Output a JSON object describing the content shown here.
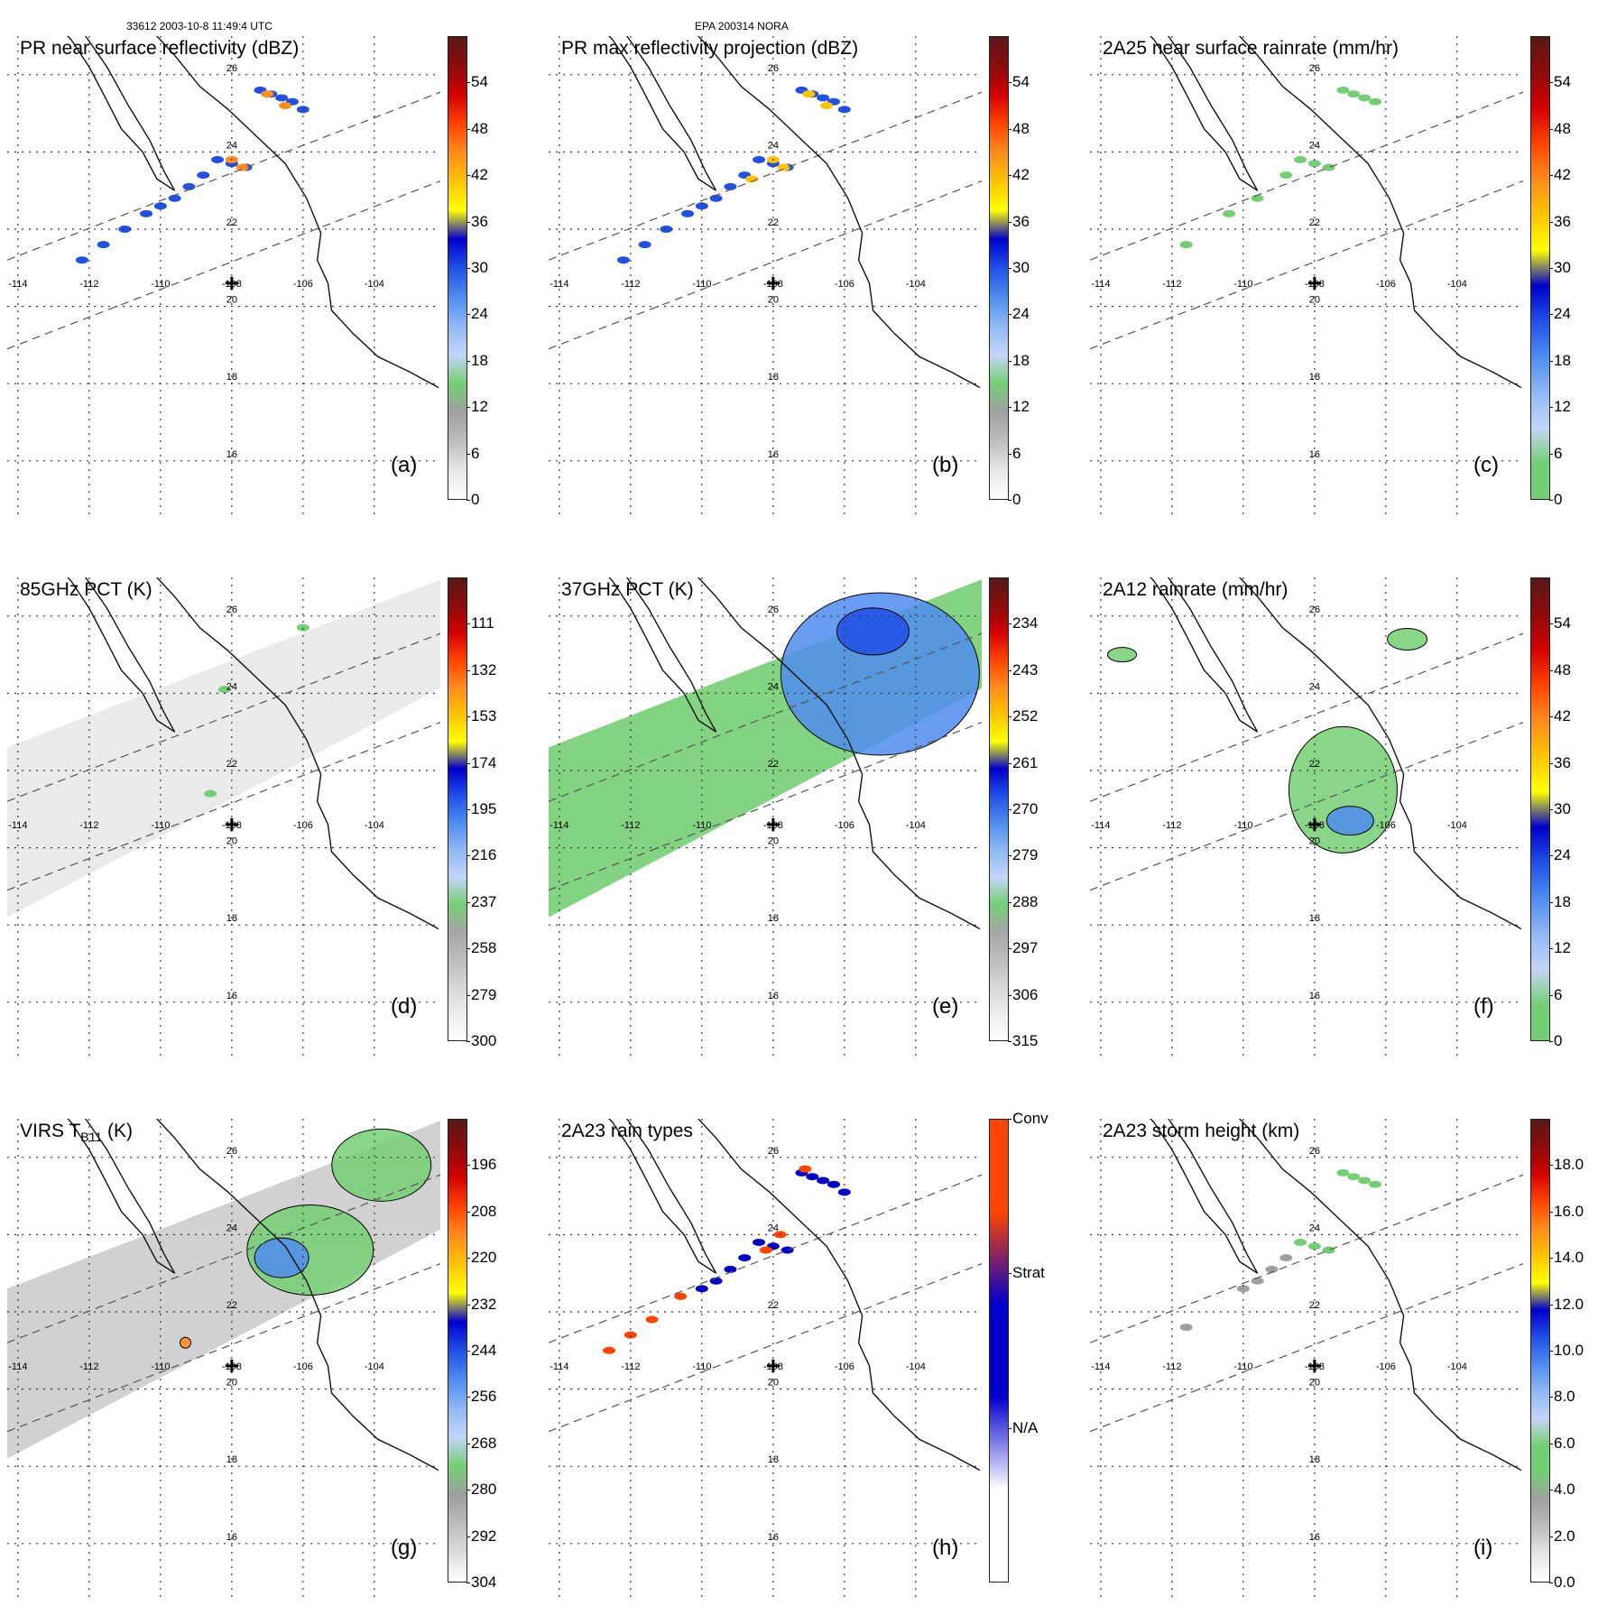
{
  "header": {
    "orbit_time": "33612 2003-10-8 11:49:4 UTC",
    "storm": "EPA 200314 NORA"
  },
  "map": {
    "lon_labels": [
      "-114",
      "-112",
      "-110",
      "-108",
      "-106",
      "-104"
    ],
    "lat_labels": [
      "26",
      "24",
      "22",
      "20",
      "18",
      "16"
    ]
  },
  "colors": {
    "coast": "#111111",
    "grid": "#333333",
    "swath": "#555555"
  },
  "panels": [
    {
      "id": "a",
      "title": "PR near surface reflectivity (dBZ)",
      "title_sub": "",
      "title_post": "",
      "label": "(a)",
      "colorbar": [
        "#ffffff",
        "#e6e6e6",
        "#bebebe",
        "#a0a0a0",
        "#74cf74",
        "#c4d4f8",
        "#90b8f4",
        "#4f8cee",
        "#2050e6",
        "#0000cc",
        "#ffff00",
        "#ffc400",
        "#ff8c1c",
        "#ff4400",
        "#d40000",
        "#8a0c0c",
        "#5a1818"
      ],
      "ticks": [
        "0",
        "6",
        "12",
        "18",
        "24",
        "30",
        "36",
        "42",
        "48",
        "54"
      ],
      "tick_pos": [
        0,
        0.1,
        0.2,
        0.3,
        0.4,
        0.5,
        0.6,
        0.7,
        0.8,
        0.9
      ],
      "features": [
        {
          "type": "cells",
          "color": "#2050e6",
          "lon": [
            -107.2,
            -106.9,
            -106.6,
            -106.3,
            -106.0,
            -108.4,
            -108.0,
            -107.6,
            -108.8,
            -109.2,
            -109.6,
            -110.0,
            -110.4,
            -111.0,
            -111.6,
            -112.2
          ],
          "lat": [
            25.6,
            25.5,
            25.4,
            25.3,
            25.1,
            23.8,
            23.7,
            23.6,
            23.4,
            23.1,
            22.8,
            22.6,
            22.4,
            22.0,
            21.6,
            21.2
          ]
        },
        {
          "type": "cells",
          "color": "#ff8c1c",
          "lon": [
            -107.0,
            -106.5,
            -108.0,
            -107.7
          ],
          "lat": [
            25.5,
            25.2,
            23.8,
            23.6
          ]
        }
      ]
    },
    {
      "id": "b",
      "title": "PR max reflectivity projection (dBZ)",
      "title_sub": "",
      "title_post": "",
      "label": "(b)",
      "colorbar": [
        "#ffffff",
        "#e6e6e6",
        "#bebebe",
        "#a0a0a0",
        "#74cf74",
        "#c4d4f8",
        "#90b8f4",
        "#4f8cee",
        "#2050e6",
        "#0000cc",
        "#ffff00",
        "#ffc400",
        "#ff8c1c",
        "#ff4400",
        "#d40000",
        "#8a0c0c",
        "#5a1818"
      ],
      "ticks": [
        "0",
        "6",
        "12",
        "18",
        "24",
        "30",
        "36",
        "42",
        "48",
        "54"
      ],
      "tick_pos": [
        0,
        0.1,
        0.2,
        0.3,
        0.4,
        0.5,
        0.6,
        0.7,
        0.8,
        0.9
      ],
      "features": [
        {
          "type": "cells",
          "color": "#2050e6",
          "lon": [
            -107.2,
            -106.9,
            -106.6,
            -106.3,
            -106.0,
            -108.4,
            -108.0,
            -107.6,
            -108.8,
            -109.2,
            -109.6,
            -110.0,
            -110.4,
            -111.0,
            -111.6,
            -112.2
          ],
          "lat": [
            25.6,
            25.5,
            25.4,
            25.3,
            25.1,
            23.8,
            23.7,
            23.6,
            23.4,
            23.1,
            22.8,
            22.6,
            22.4,
            22.0,
            21.6,
            21.2
          ]
        },
        {
          "type": "cells",
          "color": "#ffc400",
          "lon": [
            -107.0,
            -106.5,
            -108.0,
            -107.7,
            -108.6
          ],
          "lat": [
            25.5,
            25.2,
            23.8,
            23.6,
            23.3
          ]
        }
      ]
    },
    {
      "id": "c",
      "title": "2A25 near surface rainrate (mm/hr)",
      "title_sub": "",
      "title_post": "",
      "label": "(c)",
      "colorbar": [
        "#74cf74",
        "#74cf74",
        "#c4d4f8",
        "#90b8f4",
        "#4f8cee",
        "#2050e6",
        "#0000cc",
        "#ffff00",
        "#ffc400",
        "#ff8c1c",
        "#ff4400",
        "#d40000",
        "#8a0c0c",
        "#5a1818"
      ],
      "ticks": [
        "0",
        "6",
        "12",
        "18",
        "24",
        "30",
        "36",
        "42",
        "48",
        "54"
      ],
      "tick_pos": [
        0,
        0.1,
        0.2,
        0.3,
        0.4,
        0.5,
        0.6,
        0.7,
        0.8,
        0.9
      ],
      "features": [
        {
          "type": "cells",
          "color": "#74cf74",
          "lon": [
            -107.2,
            -106.9,
            -106.6,
            -106.3,
            -108.4,
            -108.0,
            -107.6,
            -108.8,
            -109.6,
            -110.4,
            -111.6
          ],
          "lat": [
            25.6,
            25.5,
            25.4,
            25.3,
            23.8,
            23.7,
            23.6,
            23.4,
            22.8,
            22.4,
            21.6
          ]
        }
      ]
    },
    {
      "id": "d",
      "title": "85GHz PCT (K)",
      "title_sub": "",
      "title_post": "",
      "label": "(d)",
      "colorbar": [
        "#ffffff",
        "#ececec",
        "#d6d6d6",
        "#bcbcbc",
        "#a6a6a6",
        "#74cf74",
        "#c4d4f8",
        "#90b8f4",
        "#4f8cee",
        "#2050e6",
        "#0000cc",
        "#ffff00",
        "#ffc400",
        "#ff8c1c",
        "#ff4400",
        "#d40000",
        "#8a0c0c",
        "#5a1818"
      ],
      "ticks": [
        "300",
        "279",
        "258",
        "237",
        "216",
        "195",
        "174",
        "153",
        "132",
        "111"
      ],
      "tick_pos": [
        0,
        0.1,
        0.2,
        0.3,
        0.4,
        0.5,
        0.6,
        0.7,
        0.8,
        0.9
      ],
      "features": [
        {
          "type": "field",
          "color": "#e9e9e9",
          "opacity": 0.95
        },
        {
          "type": "cells",
          "color": "#74cf74",
          "lon": [
            -106.0,
            -108.2,
            -108.6
          ],
          "lat": [
            25.7,
            24.1,
            21.4
          ]
        }
      ]
    },
    {
      "id": "e",
      "title": "37GHz PCT (K)",
      "title_sub": "",
      "title_post": "",
      "label": "(e)",
      "colorbar": [
        "#ffffff",
        "#ececec",
        "#d6d6d6",
        "#bcbcbc",
        "#a6a6a6",
        "#74cf74",
        "#c4d4f8",
        "#90b8f4",
        "#4f8cee",
        "#2050e6",
        "#0000cc",
        "#ffff00",
        "#ffc400",
        "#ff8c1c",
        "#ff4400",
        "#d40000",
        "#8a0c0c",
        "#5a1818"
      ],
      "ticks": [
        "315",
        "306",
        "297",
        "288",
        "279",
        "270",
        "261",
        "252",
        "243",
        "234"
      ],
      "tick_pos": [
        0,
        0.1,
        0.2,
        0.3,
        0.4,
        0.5,
        0.6,
        0.7,
        0.8,
        0.9
      ],
      "features": [
        {
          "type": "field",
          "color": "#74cf74",
          "opacity": 0.9
        },
        {
          "type": "blob",
          "color": "#4f8cee",
          "lon": -105.0,
          "lat": 24.5,
          "rx": 110,
          "ry": 90
        },
        {
          "type": "blob",
          "color": "#2050e6",
          "lon": -105.2,
          "lat": 25.6,
          "rx": 40,
          "ry": 26
        }
      ]
    },
    {
      "id": "f",
      "title": "2A12 rainrate (mm/hr)",
      "title_sub": "",
      "title_post": "",
      "label": "(f)",
      "colorbar": [
        "#74cf74",
        "#74cf74",
        "#c4d4f8",
        "#90b8f4",
        "#4f8cee",
        "#2050e6",
        "#0000cc",
        "#ffff00",
        "#ffc400",
        "#ff8c1c",
        "#ff4400",
        "#d40000",
        "#8a0c0c",
        "#5a1818"
      ],
      "ticks": [
        "0",
        "6",
        "12",
        "18",
        "24",
        "30",
        "36",
        "42",
        "48",
        "54"
      ],
      "tick_pos": [
        0,
        0.1,
        0.2,
        0.3,
        0.4,
        0.5,
        0.6,
        0.7,
        0.8,
        0.9
      ],
      "features": [
        {
          "type": "blob",
          "color": "#74cf74",
          "lon": -107.2,
          "lat": 21.5,
          "rx": 60,
          "ry": 70
        },
        {
          "type": "blob",
          "color": "#74cf74",
          "lon": -105.4,
          "lat": 25.4,
          "rx": 22,
          "ry": 12
        },
        {
          "type": "blob",
          "color": "#74cf74",
          "lon": -113.4,
          "lat": 25.0,
          "rx": 16,
          "ry": 8
        },
        {
          "type": "blob",
          "color": "#4f8cee",
          "lon": -107.0,
          "lat": 20.7,
          "rx": 26,
          "ry": 16
        }
      ]
    },
    {
      "id": "g",
      "title": "VIRS T",
      "title_sub": "B11",
      "title_post": " (K)",
      "label": "(g)",
      "colorbar": [
        "#ffffff",
        "#dcdcdc",
        "#bcbcbc",
        "#9e9e9e",
        "#74cf74",
        "#c4d4f8",
        "#90b8f4",
        "#4f8cee",
        "#2050e6",
        "#0000cc",
        "#ffff00",
        "#ffc400",
        "#ff8c1c",
        "#ff4400",
        "#d40000",
        "#8a0c0c",
        "#5a1818"
      ],
      "ticks": [
        "304",
        "292",
        "280",
        "268",
        "256",
        "244",
        "232",
        "220",
        "208",
        "196"
      ],
      "tick_pos": [
        0,
        0.1,
        0.2,
        0.3,
        0.4,
        0.5,
        0.6,
        0.7,
        0.8,
        0.9
      ],
      "features": [
        {
          "type": "field",
          "color": "#cfcfcf",
          "opacity": 0.95
        },
        {
          "type": "blob",
          "color": "#74cf74",
          "lon": -105.8,
          "lat": 23.6,
          "rx": 70,
          "ry": 50
        },
        {
          "type": "blob",
          "color": "#74cf74",
          "lon": -103.8,
          "lat": 25.8,
          "rx": 55,
          "ry": 40
        },
        {
          "type": "blob",
          "color": "#4f8cee",
          "lon": -106.6,
          "lat": 23.4,
          "rx": 30,
          "ry": 22
        },
        {
          "type": "blob",
          "color": "#ff8c1c",
          "lon": -109.3,
          "lat": 21.2,
          "rx": 6,
          "ry": 6
        }
      ]
    },
    {
      "id": "h",
      "title": "2A23 rain types",
      "title_sub": "",
      "title_post": "",
      "label": "(h)",
      "colorbar": [
        "#ffffff",
        "#ffffff",
        "#0000cc",
        "#0000cc",
        "#ff4400",
        "#ff4400"
      ],
      "ticks": [
        "N/A",
        "Strat",
        "Conv"
      ],
      "tick_pos": [
        0.333,
        0.667,
        1.0
      ],
      "features": [
        {
          "type": "cells",
          "color": "#0000cc",
          "lon": [
            -107.2,
            -106.9,
            -106.6,
            -106.3,
            -106.0,
            -108.4,
            -108.0,
            -107.6,
            -108.8,
            -109.2,
            -109.6,
            -110.0
          ],
          "lat": [
            25.6,
            25.5,
            25.4,
            25.3,
            25.1,
            23.8,
            23.7,
            23.6,
            23.4,
            23.1,
            22.8,
            22.6
          ]
        },
        {
          "type": "cells",
          "color": "#ff4400",
          "lon": [
            -107.1,
            -107.8,
            -108.2,
            -110.6,
            -111.4,
            -112.0,
            -112.6
          ],
          "lat": [
            25.7,
            24.0,
            23.6,
            22.4,
            21.8,
            21.4,
            21.0
          ]
        }
      ]
    },
    {
      "id": "i",
      "title": "2A23 storm height (km)",
      "title_sub": "",
      "title_post": "",
      "label": "(i)",
      "colorbar": [
        "#ffffff",
        "#e6e6e6",
        "#bebebe",
        "#a0a0a0",
        "#74cf74",
        "#74cf74",
        "#c4d4f8",
        "#90b8f4",
        "#4f8cee",
        "#2050e6",
        "#0000cc",
        "#ffff00",
        "#ffc400",
        "#ff8c1c",
        "#ff4400",
        "#d40000",
        "#8a0c0c",
        "#5a1818"
      ],
      "ticks": [
        "0.0",
        "2.0",
        "4.0",
        "6.0",
        "8.0",
        "10.0",
        "12.0",
        "14.0",
        "16.0",
        "18.0"
      ],
      "tick_pos": [
        0,
        0.1,
        0.2,
        0.3,
        0.4,
        0.5,
        0.6,
        0.7,
        0.8,
        0.9
      ],
      "features": [
        {
          "type": "cells",
          "color": "#74cf74",
          "lon": [
            -107.2,
            -106.9,
            -106.6,
            -106.3,
            -108.4,
            -108.0,
            -107.6
          ],
          "lat": [
            25.6,
            25.5,
            25.4,
            25.3,
            23.8,
            23.7,
            23.6
          ]
        },
        {
          "type": "cells",
          "color": "#a0a0a0",
          "lon": [
            -108.8,
            -109.2,
            -109.6,
            -110.0,
            -111.6
          ],
          "lat": [
            23.4,
            23.1,
            22.8,
            22.6,
            21.6
          ]
        }
      ]
    }
  ]
}
